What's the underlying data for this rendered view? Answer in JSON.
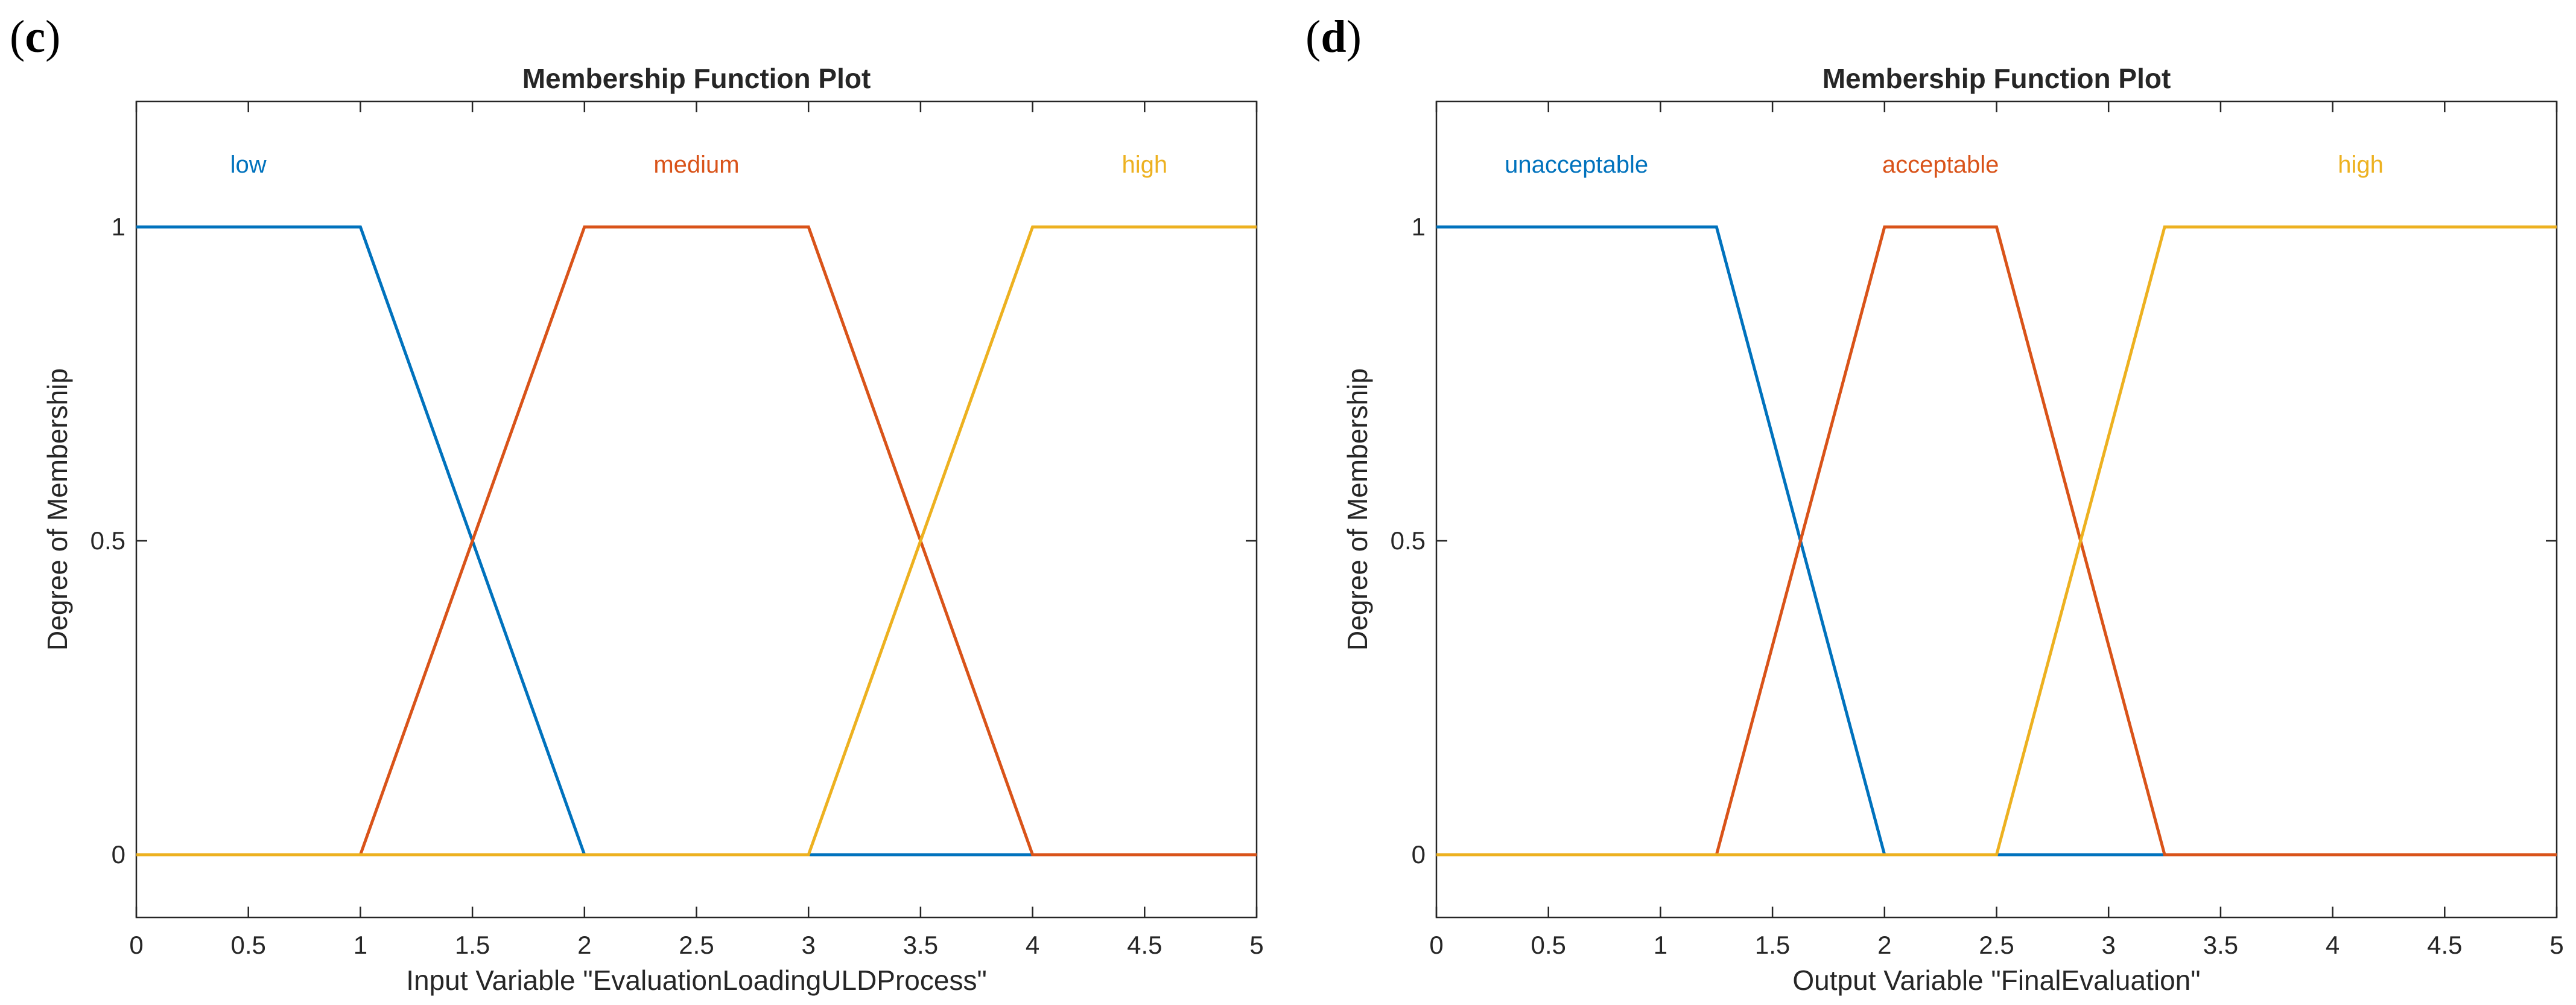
{
  "chart_data": [
    {
      "panel": "c",
      "type": "line",
      "title": "Membership Function Plot",
      "xlabel": "Input Variable \"EvaluationLoadingULDProcess\"",
      "ylabel": "Degree of Membership",
      "xlim": [
        0,
        5
      ],
      "ylim": [
        -0.1,
        1.2
      ],
      "xticks": [
        0,
        0.5,
        1,
        1.5,
        2,
        2.5,
        3,
        3.5,
        4,
        4.5,
        5
      ],
      "xtick_labels": [
        "0",
        "0.5",
        "1",
        "1.5",
        "2",
        "2.5",
        "3",
        "3.5",
        "4",
        "4.5",
        "5"
      ],
      "yticks": [
        0,
        0.5,
        1
      ],
      "ytick_labels": [
        "0",
        "0.5",
        "1"
      ],
      "series": [
        {
          "name": "low",
          "color": "#0072BD",
          "x": [
            0,
            1,
            2,
            5
          ],
          "y": [
            1,
            1,
            0,
            0
          ],
          "label_x": 0.5,
          "label_y": 1.1
        },
        {
          "name": "medium",
          "color": "#D95319",
          "x": [
            0,
            1,
            2,
            3,
            4,
            5
          ],
          "y": [
            0,
            0,
            1,
            1,
            0,
            0
          ],
          "label_x": 2.5,
          "label_y": 1.1
        },
        {
          "name": "high",
          "color": "#EDB120",
          "x": [
            0,
            3,
            4,
            5
          ],
          "y": [
            0,
            0,
            1,
            1
          ],
          "label_x": 4.5,
          "label_y": 1.1
        }
      ]
    },
    {
      "panel": "d",
      "type": "line",
      "title": "Membership Function Plot",
      "xlabel": "Output Variable \"FinalEvaluation\"",
      "ylabel": "Degree of Membership",
      "xlim": [
        0,
        5
      ],
      "ylim": [
        -0.1,
        1.2
      ],
      "xticks": [
        0,
        0.5,
        1,
        1.5,
        2,
        2.5,
        3,
        3.5,
        4,
        4.5,
        5
      ],
      "xtick_labels": [
        "0",
        "0.5",
        "1",
        "1.5",
        "2",
        "2.5",
        "3",
        "3.5",
        "4",
        "4.5",
        "5"
      ],
      "yticks": [
        0,
        0.5,
        1
      ],
      "ytick_labels": [
        "0",
        "0.5",
        "1"
      ],
      "series": [
        {
          "name": "unacceptable",
          "color": "#0072BD",
          "x": [
            0,
            1.25,
            2,
            5
          ],
          "y": [
            1,
            1,
            0,
            0
          ],
          "label_x": 0.625,
          "label_y": 1.1
        },
        {
          "name": "acceptable",
          "color": "#D95319",
          "x": [
            0,
            1.25,
            2,
            2.5,
            3.25,
            5
          ],
          "y": [
            0,
            0,
            1,
            1,
            0,
            0
          ],
          "label_x": 2.25,
          "label_y": 1.1
        },
        {
          "name": "high",
          "color": "#EDB120",
          "x": [
            0,
            2.5,
            3.25,
            5
          ],
          "y": [
            0,
            0,
            1,
            1
          ],
          "label_x": 4.125,
          "label_y": 1.1
        }
      ]
    }
  ]
}
